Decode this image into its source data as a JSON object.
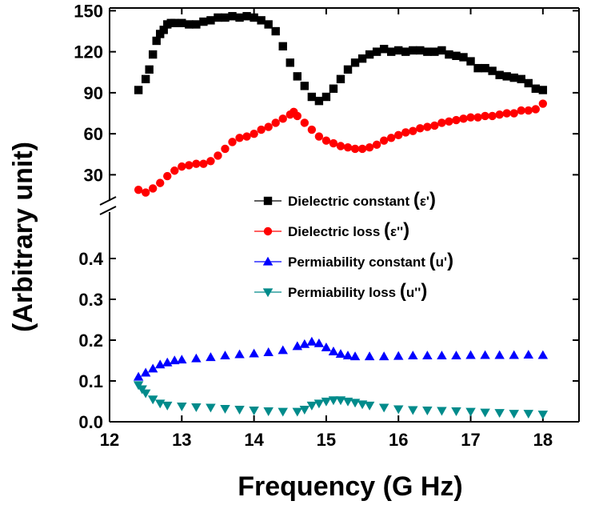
{
  "chart_data": {
    "type": "scatter",
    "xlabel": "Frequency (G Hz)",
    "ylabel": "(Arbitrary unit)",
    "xlim": [
      12,
      18.5
    ],
    "x_ticks": [
      12,
      13,
      14,
      15,
      16,
      17,
      18
    ],
    "x_tick_labels": [
      "12",
      "13",
      "14",
      "15",
      "16",
      "17",
      "18"
    ],
    "y_axis_broken": true,
    "y_upper_segment": {
      "ylim": [
        15,
        152
      ],
      "ticks": [
        30,
        60,
        90,
        120,
        150
      ],
      "tick_labels": [
        "30",
        "60",
        "90",
        "120",
        "150"
      ]
    },
    "y_lower_segment": {
      "ylim": [
        0,
        0.5
      ],
      "ticks": [
        0.0,
        0.1,
        0.2,
        0.3,
        0.4
      ],
      "tick_labels": [
        "0.0",
        "0.1",
        "0.2",
        "0.3",
        "0.4"
      ]
    },
    "legend_position": "center-right",
    "series": [
      {
        "name": "Dielectric constant",
        "symbol": "ε'",
        "segment": "upper",
        "marker": "square",
        "color": "#000000",
        "points": [
          [
            12.4,
            92
          ],
          [
            12.5,
            100
          ],
          [
            12.55,
            107
          ],
          [
            12.6,
            118
          ],
          [
            12.65,
            128
          ],
          [
            12.7,
            133
          ],
          [
            12.75,
            136
          ],
          [
            12.8,
            140
          ],
          [
            12.85,
            141
          ],
          [
            12.9,
            141
          ],
          [
            13.0,
            141
          ],
          [
            13.1,
            140
          ],
          [
            13.2,
            140
          ],
          [
            13.3,
            142
          ],
          [
            13.4,
            143
          ],
          [
            13.5,
            145
          ],
          [
            13.6,
            145
          ],
          [
            13.7,
            146
          ],
          [
            13.8,
            145
          ],
          [
            13.9,
            146
          ],
          [
            14.0,
            145
          ],
          [
            14.1,
            143
          ],
          [
            14.2,
            140
          ],
          [
            14.3,
            135
          ],
          [
            14.4,
            124
          ],
          [
            14.5,
            112
          ],
          [
            14.6,
            102
          ],
          [
            14.7,
            95
          ],
          [
            14.8,
            87
          ],
          [
            14.9,
            84
          ],
          [
            15.0,
            87
          ],
          [
            15.1,
            93
          ],
          [
            15.2,
            100
          ],
          [
            15.3,
            107
          ],
          [
            15.4,
            112
          ],
          [
            15.5,
            115
          ],
          [
            15.6,
            118
          ],
          [
            15.7,
            120
          ],
          [
            15.8,
            122
          ],
          [
            15.9,
            120
          ],
          [
            16.0,
            121
          ],
          [
            16.1,
            120
          ],
          [
            16.2,
            121
          ],
          [
            16.3,
            121
          ],
          [
            16.4,
            120
          ],
          [
            16.5,
            120
          ],
          [
            16.6,
            121
          ],
          [
            16.7,
            118
          ],
          [
            16.8,
            117
          ],
          [
            16.9,
            116
          ],
          [
            17.0,
            113
          ],
          [
            17.1,
            108
          ],
          [
            17.2,
            108
          ],
          [
            17.3,
            106
          ],
          [
            17.4,
            103
          ],
          [
            17.5,
            102
          ],
          [
            17.6,
            101
          ],
          [
            17.7,
            100
          ],
          [
            17.8,
            97
          ],
          [
            17.9,
            93
          ],
          [
            18.0,
            92
          ]
        ]
      },
      {
        "name": "Dielectric loss",
        "symbol": "ε''",
        "segment": "upper",
        "marker": "circle",
        "color": "#ff0000",
        "points": [
          [
            12.4,
            19
          ],
          [
            12.5,
            17
          ],
          [
            12.6,
            20
          ],
          [
            12.7,
            24
          ],
          [
            12.8,
            29
          ],
          [
            12.9,
            33
          ],
          [
            13.0,
            36
          ],
          [
            13.1,
            37
          ],
          [
            13.2,
            38
          ],
          [
            13.3,
            38
          ],
          [
            13.4,
            40
          ],
          [
            13.5,
            44
          ],
          [
            13.6,
            49
          ],
          [
            13.7,
            54
          ],
          [
            13.8,
            57
          ],
          [
            13.9,
            58
          ],
          [
            14.0,
            60
          ],
          [
            14.1,
            63
          ],
          [
            14.2,
            65
          ],
          [
            14.3,
            68
          ],
          [
            14.4,
            71
          ],
          [
            14.5,
            74
          ],
          [
            14.55,
            76
          ],
          [
            14.6,
            73
          ],
          [
            14.7,
            68
          ],
          [
            14.8,
            63
          ],
          [
            14.9,
            58
          ],
          [
            15.0,
            55
          ],
          [
            15.1,
            53
          ],
          [
            15.2,
            51
          ],
          [
            15.3,
            50
          ],
          [
            15.4,
            49
          ],
          [
            15.5,
            49
          ],
          [
            15.6,
            50
          ],
          [
            15.7,
            52
          ],
          [
            15.8,
            55
          ],
          [
            15.9,
            57
          ],
          [
            16.0,
            59
          ],
          [
            16.1,
            61
          ],
          [
            16.2,
            62
          ],
          [
            16.3,
            64
          ],
          [
            16.4,
            65
          ],
          [
            16.5,
            66
          ],
          [
            16.6,
            68
          ],
          [
            16.7,
            69
          ],
          [
            16.8,
            70
          ],
          [
            16.9,
            71
          ],
          [
            17.0,
            72
          ],
          [
            17.1,
            72
          ],
          [
            17.2,
            73
          ],
          [
            17.3,
            73
          ],
          [
            17.4,
            74
          ],
          [
            17.5,
            75
          ],
          [
            17.6,
            75
          ],
          [
            17.7,
            77
          ],
          [
            17.8,
            77
          ],
          [
            17.9,
            78
          ],
          [
            18.0,
            82
          ]
        ]
      },
      {
        "name": "Permiability constant",
        "symbol": "u'",
        "segment": "lower",
        "marker": "triangle-up",
        "color": "#0000ff",
        "points": [
          [
            12.4,
            0.11
          ],
          [
            12.5,
            0.12
          ],
          [
            12.6,
            0.13
          ],
          [
            12.7,
            0.14
          ],
          [
            12.8,
            0.145
          ],
          [
            12.9,
            0.15
          ],
          [
            13.0,
            0.152
          ],
          [
            13.2,
            0.155
          ],
          [
            13.4,
            0.158
          ],
          [
            13.6,
            0.162
          ],
          [
            13.8,
            0.165
          ],
          [
            14.0,
            0.167
          ],
          [
            14.2,
            0.17
          ],
          [
            14.4,
            0.175
          ],
          [
            14.6,
            0.185
          ],
          [
            14.7,
            0.19
          ],
          [
            14.8,
            0.196
          ],
          [
            14.9,
            0.192
          ],
          [
            15.0,
            0.182
          ],
          [
            15.1,
            0.172
          ],
          [
            15.2,
            0.166
          ],
          [
            15.3,
            0.162
          ],
          [
            15.4,
            0.16
          ],
          [
            15.6,
            0.16
          ],
          [
            15.8,
            0.16
          ],
          [
            16.0,
            0.161
          ],
          [
            16.2,
            0.162
          ],
          [
            16.4,
            0.162
          ],
          [
            16.6,
            0.162
          ],
          [
            16.8,
            0.162
          ],
          [
            17.0,
            0.163
          ],
          [
            17.2,
            0.163
          ],
          [
            17.4,
            0.163
          ],
          [
            17.6,
            0.163
          ],
          [
            17.8,
            0.164
          ],
          [
            18.0,
            0.163
          ]
        ]
      },
      {
        "name": "Permiability loss",
        "symbol": "u''",
        "segment": "lower",
        "marker": "triangle-down",
        "color": "#008b8b",
        "points": [
          [
            12.4,
            0.09
          ],
          [
            12.45,
            0.08
          ],
          [
            12.5,
            0.07
          ],
          [
            12.6,
            0.055
          ],
          [
            12.7,
            0.045
          ],
          [
            12.8,
            0.04
          ],
          [
            13.0,
            0.038
          ],
          [
            13.2,
            0.036
          ],
          [
            13.4,
            0.035
          ],
          [
            13.6,
            0.032
          ],
          [
            13.8,
            0.03
          ],
          [
            14.0,
            0.028
          ],
          [
            14.2,
            0.026
          ],
          [
            14.4,
            0.025
          ],
          [
            14.6,
            0.025
          ],
          [
            14.7,
            0.03
          ],
          [
            14.8,
            0.04
          ],
          [
            14.9,
            0.045
          ],
          [
            15.0,
            0.05
          ],
          [
            15.1,
            0.053
          ],
          [
            15.2,
            0.053
          ],
          [
            15.3,
            0.05
          ],
          [
            15.4,
            0.047
          ],
          [
            15.5,
            0.043
          ],
          [
            15.6,
            0.04
          ],
          [
            15.8,
            0.035
          ],
          [
            16.0,
            0.031
          ],
          [
            16.2,
            0.029
          ],
          [
            16.4,
            0.028
          ],
          [
            16.6,
            0.027
          ],
          [
            16.8,
            0.026
          ],
          [
            17.0,
            0.025
          ],
          [
            17.2,
            0.023
          ],
          [
            17.4,
            0.022
          ],
          [
            17.6,
            0.02
          ],
          [
            17.8,
            0.02
          ],
          [
            18.0,
            0.018
          ]
        ]
      }
    ]
  }
}
